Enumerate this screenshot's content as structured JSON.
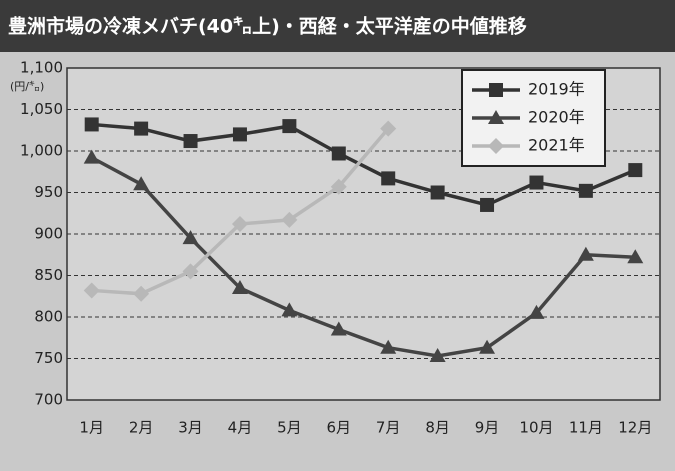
{
  "chart_data": {
    "type": "line",
    "title": "豊洲市場の冷凍メバチ(40㌔上)・西経・太平洋産の中値推移",
    "y_label": "(円/㌔)",
    "categories": [
      "1月",
      "2月",
      "3月",
      "4月",
      "5月",
      "6月",
      "7月",
      "8月",
      "9月",
      "10月",
      "11月",
      "12月"
    ],
    "series": [
      {
        "name": "2019年",
        "color": "#333333",
        "marker": "square",
        "values": [
          1032,
          1027,
          1012,
          1020,
          1030,
          997,
          967,
          950,
          935,
          962,
          952,
          977
        ]
      },
      {
        "name": "2020年",
        "color": "#444444",
        "marker": "triangle",
        "values": [
          992,
          960,
          895,
          835,
          808,
          785,
          763,
          753,
          763,
          805,
          875,
          872
        ]
      },
      {
        "name": "2021年",
        "color": "#b8b8b8",
        "marker": "diamond",
        "values": [
          832,
          828,
          855,
          912,
          917,
          957,
          1027,
          null,
          null,
          null,
          null,
          null
        ]
      }
    ],
    "ylim": [
      700,
      1100
    ],
    "yticks": [
      700,
      750,
      800,
      850,
      900,
      950,
      {
        "value": 1000,
        "label": "1,000"
      },
      {
        "value": 1050,
        "label": "1,050"
      },
      {
        "value": 1100,
        "label": "1,100"
      }
    ],
    "grid": true,
    "legend": "upper-right"
  }
}
